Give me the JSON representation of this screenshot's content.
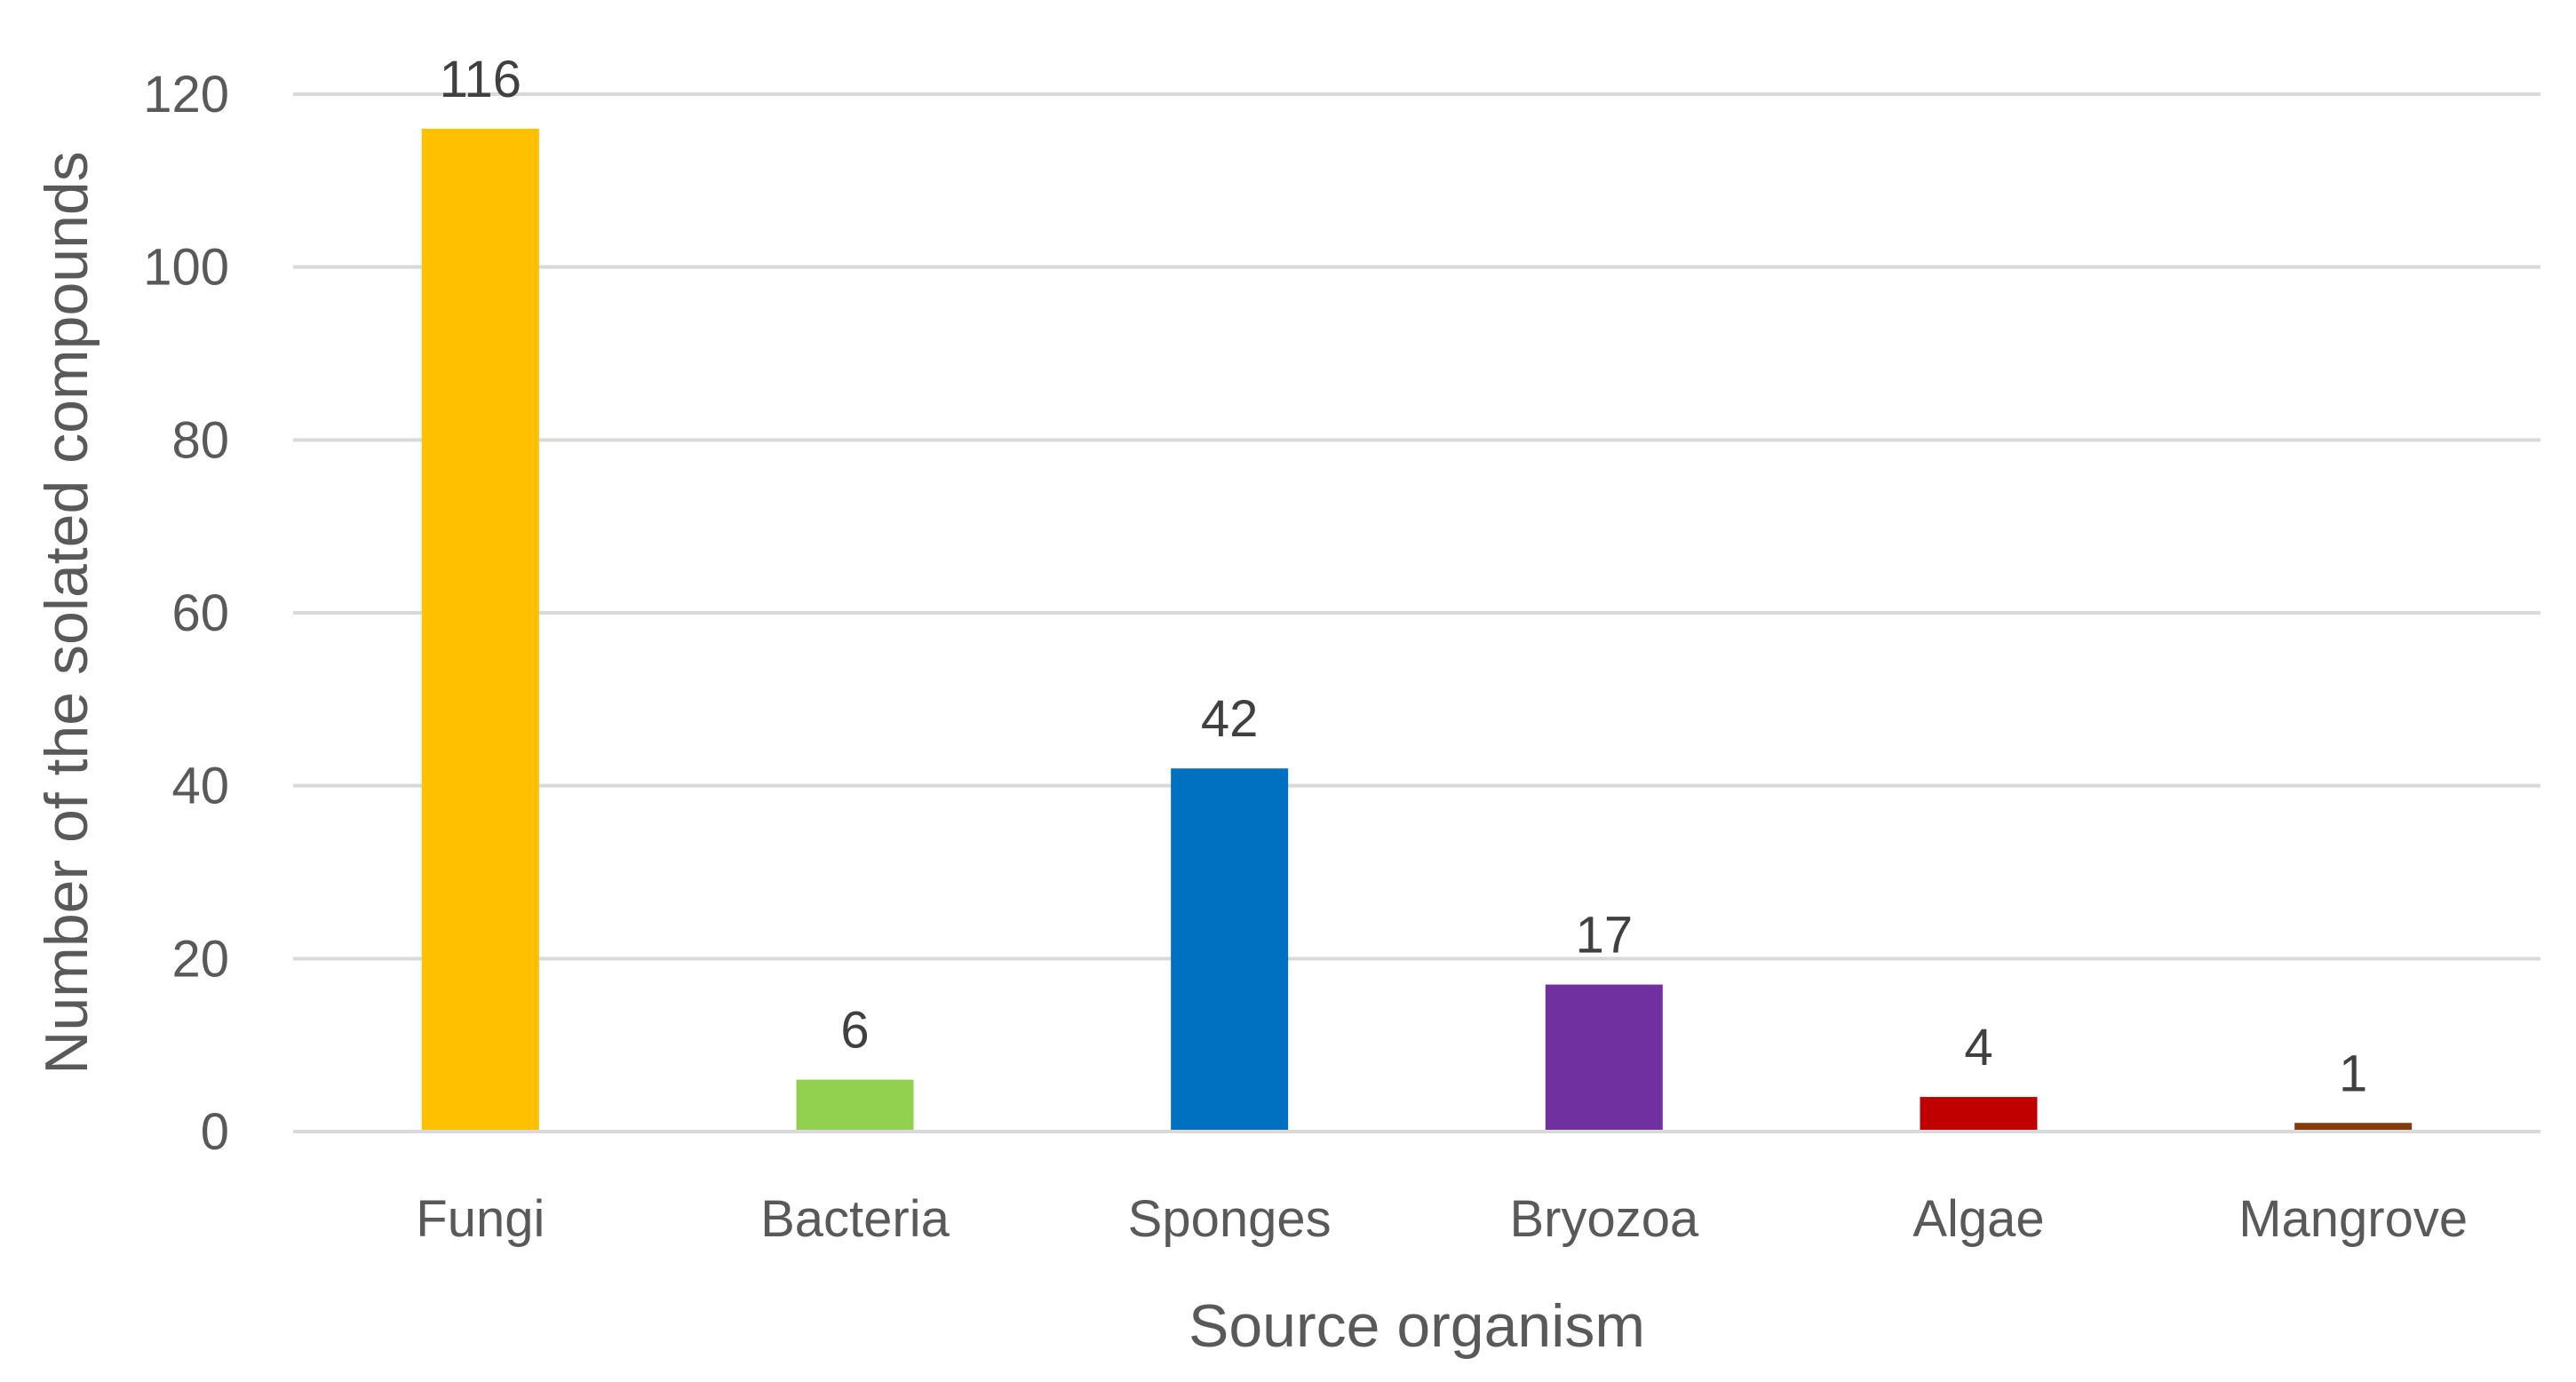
{
  "chart_data": {
    "type": "bar",
    "title": "",
    "xlabel": "Source organism",
    "ylabel": "Number of the solated compounds",
    "categories": [
      "Fungi",
      "Bacteria",
      "Sponges",
      "Bryozoa",
      "Algae",
      "Mangrove"
    ],
    "values": [
      116,
      6,
      42,
      17,
      4,
      1
    ],
    "data_labels": [
      "116",
      "6",
      "42",
      "17",
      "4",
      "1"
    ],
    "colors": [
      "#FFC000",
      "#92D050",
      "#0070C0",
      "#7030A0",
      "#C00000",
      "#843C0C"
    ],
    "ylim": [
      0,
      120
    ],
    "yticks": [
      0,
      20,
      40,
      60,
      80,
      100,
      120
    ],
    "ytick_labels": [
      "0",
      "20",
      "40",
      "60",
      "80",
      "100",
      "120"
    ],
    "grid": true,
    "legend": "none"
  }
}
